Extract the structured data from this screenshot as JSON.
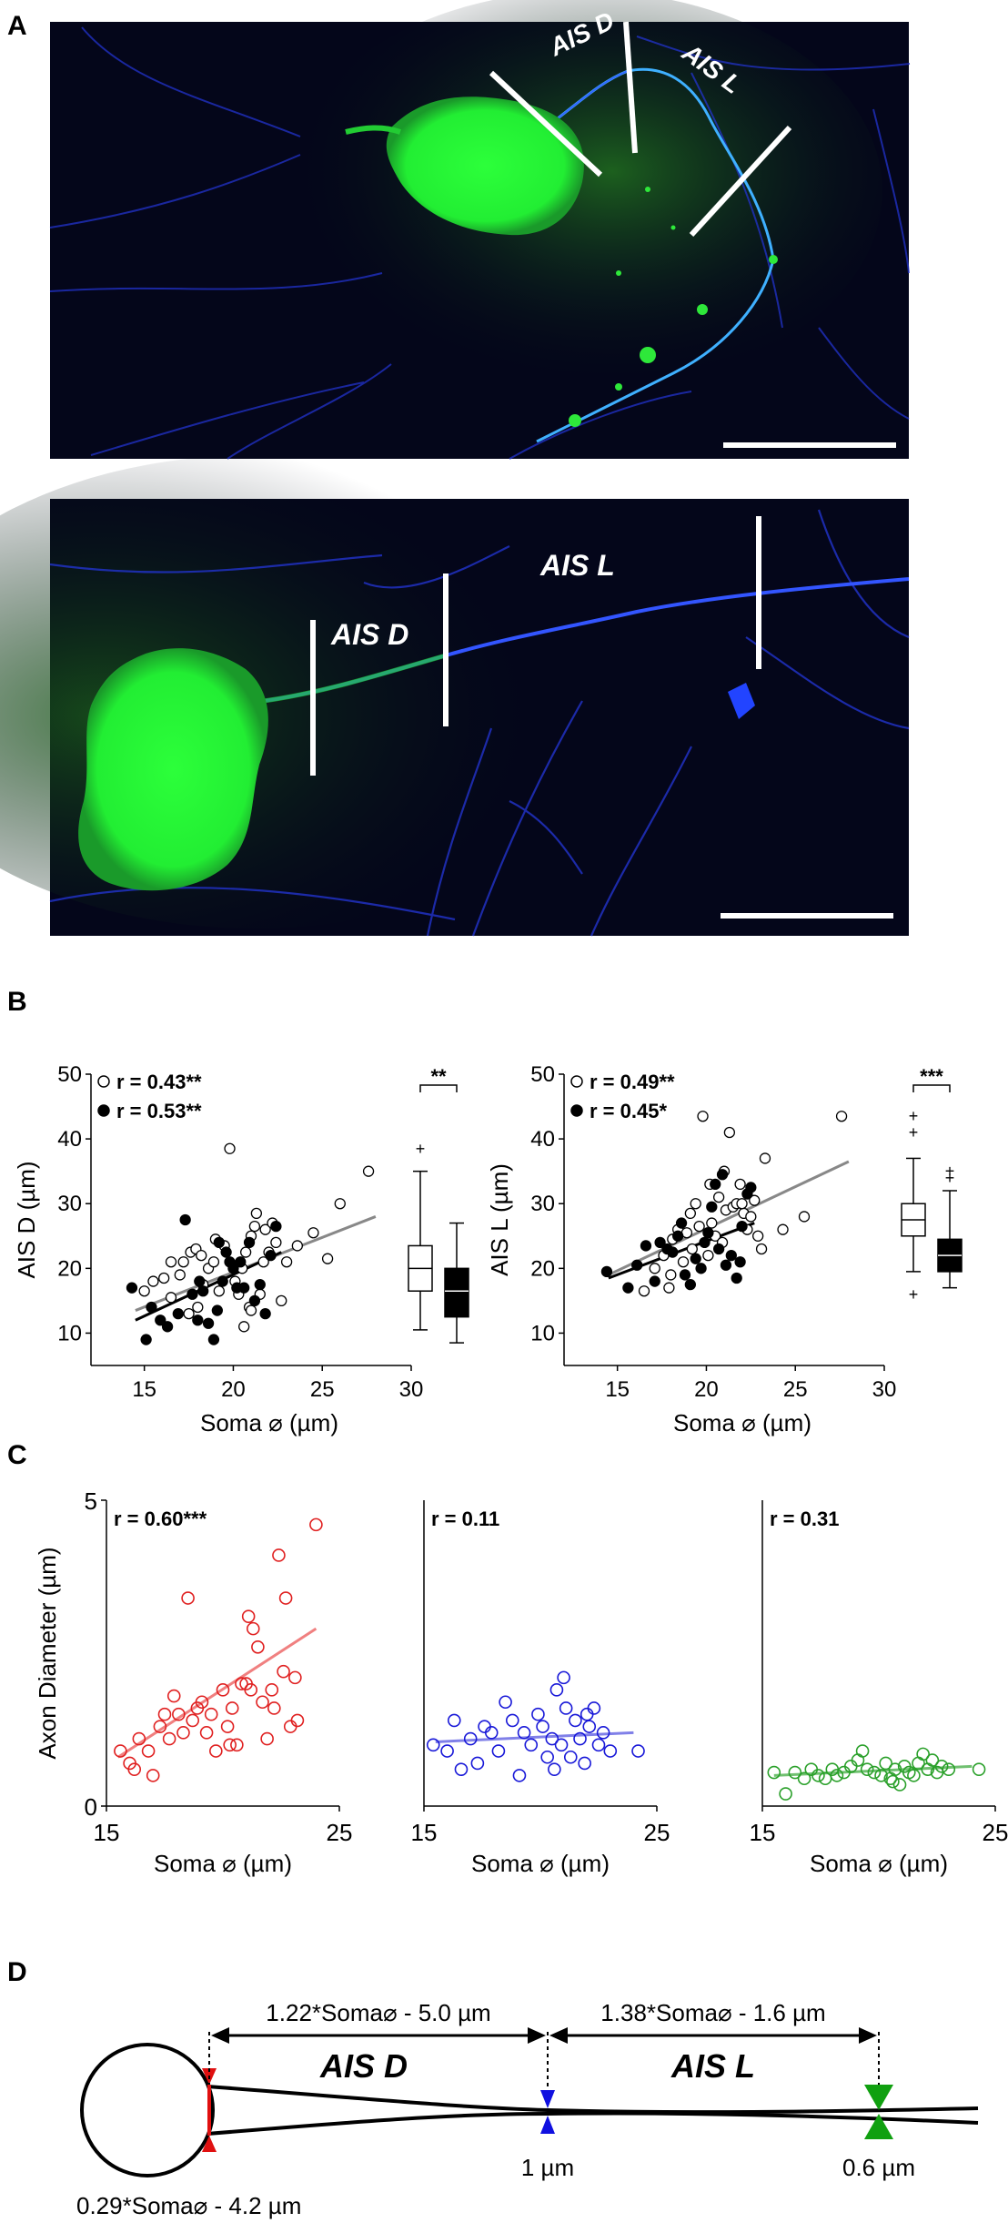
{
  "panel_labels": [
    "A",
    "B",
    "C",
    "D"
  ],
  "panel_a": {
    "top": {
      "label_d": "AIS D",
      "label_l": "AIS L"
    },
    "bottom": {
      "label_d": "AIS D",
      "label_l": "AIS L"
    },
    "colors": {
      "background": "#04061a",
      "soma": "#22ee33",
      "axon": "#2a3cff"
    }
  },
  "chart_data": [
    {
      "id": "B-left",
      "type": "scatter",
      "xlabel": "Soma ⌀ (µm)",
      "ylabel": "AIS D (µm)",
      "xlim": [
        12,
        30
      ],
      "ylim": [
        5,
        50
      ],
      "xticks": [
        15,
        20,
        25,
        30
      ],
      "yticks": [
        10,
        20,
        30,
        40,
        50
      ],
      "legend": [
        "r = 0.43**",
        "r = 0.53**"
      ],
      "significance": "**",
      "series": [
        {
          "name": "r = 0.43**",
          "fill": "open",
          "line_color": "#888888",
          "fit": [
            [
              14.5,
              13.5
            ],
            [
              28,
              28
            ]
          ],
          "points": [
            [
              15,
              16.5
            ],
            [
              15.5,
              18
            ],
            [
              16.1,
              18.5
            ],
            [
              16.5,
              15.5
            ],
            [
              17,
              19
            ],
            [
              17.2,
              21
            ],
            [
              17.6,
              22.5
            ],
            [
              17.9,
              23
            ],
            [
              18.2,
              22
            ],
            [
              18.3,
              17.5
            ],
            [
              18.6,
              20
            ],
            [
              18.9,
              21
            ],
            [
              19.2,
              16.5
            ],
            [
              19.5,
              23.5
            ],
            [
              19.8,
              38.5
            ],
            [
              20.1,
              18
            ],
            [
              20.3,
              16
            ],
            [
              20.5,
              20
            ],
            [
              20.7,
              22.5
            ],
            [
              20.9,
              14
            ],
            [
              21,
              25
            ],
            [
              21.2,
              26.5
            ],
            [
              21.3,
              28.5
            ],
            [
              21.5,
              16
            ],
            [
              21.7,
              21
            ],
            [
              21.8,
              26
            ],
            [
              22,
              22.5
            ],
            [
              22.2,
              27
            ],
            [
              22.4,
              24
            ],
            [
              22.7,
              15
            ],
            [
              23,
              21
            ],
            [
              23.6,
              23.5
            ],
            [
              24.5,
              25.5
            ],
            [
              25.3,
              21.5
            ],
            [
              26,
              30
            ],
            [
              27.6,
              35
            ],
            [
              18,
              14
            ],
            [
              19,
              24.5
            ],
            [
              20.6,
              11
            ],
            [
              21,
              13.5
            ],
            [
              16.5,
              21
            ],
            [
              17.5,
              13
            ]
          ]
        },
        {
          "name": "r = 0.53**",
          "fill": "filled",
          "line_color": "#000000",
          "fit": [
            [
              14.5,
              12
            ],
            [
              22.7,
              22.5
            ]
          ],
          "points": [
            [
              14.3,
              17
            ],
            [
              15.1,
              9
            ],
            [
              15.4,
              14
            ],
            [
              15.9,
              12
            ],
            [
              16.3,
              11
            ],
            [
              16.9,
              13
            ],
            [
              17.3,
              27.5
            ],
            [
              17.7,
              16
            ],
            [
              18,
              12
            ],
            [
              18.3,
              16.5
            ],
            [
              18.6,
              11.5
            ],
            [
              18.9,
              9
            ],
            [
              19.1,
              13.5
            ],
            [
              19.4,
              18
            ],
            [
              19.6,
              22.5
            ],
            [
              19.8,
              21
            ],
            [
              20,
              20
            ],
            [
              20.2,
              17
            ],
            [
              20.4,
              21
            ],
            [
              20.6,
              17
            ],
            [
              20.9,
              24
            ],
            [
              21.2,
              15
            ],
            [
              21.5,
              17.5
            ],
            [
              21.8,
              13
            ],
            [
              22.1,
              22
            ],
            [
              22.4,
              26.5
            ],
            [
              19.2,
              24
            ],
            [
              18.1,
              18
            ]
          ]
        }
      ],
      "boxes": [
        {
          "fill": "open",
          "whisker_low": 10.5,
          "q1": 16.5,
          "median": 20,
          "q3": 23.5,
          "whisker_high": 35,
          "outliers": [
            38.5
          ]
        },
        {
          "fill": "filled",
          "whisker_low": 8.5,
          "q1": 12.5,
          "median": 16.5,
          "q3": 20,
          "whisker_high": 27,
          "outliers": []
        }
      ]
    },
    {
      "id": "B-right",
      "type": "scatter",
      "xlabel": "Soma ⌀ (µm)",
      "ylabel": "AIS L (µm)",
      "xlim": [
        12,
        30
      ],
      "ylim": [
        5,
        50
      ],
      "xticks": [
        15,
        20,
        25,
        30
      ],
      "yticks": [
        10,
        20,
        30,
        40,
        50
      ],
      "legend": [
        "r = 0.49**",
        "r = 0.45*"
      ],
      "significance": "***",
      "series": [
        {
          "name": "r = 0.49**",
          "fill": "open",
          "line_color": "#888888",
          "fit": [
            [
              14.5,
              19
            ],
            [
              28,
              36.5
            ]
          ],
          "points": [
            [
              16.5,
              16.5
            ],
            [
              17.1,
              20
            ],
            [
              17.6,
              22
            ],
            [
              17.9,
              17
            ],
            [
              18.1,
              24.5
            ],
            [
              18.4,
              26
            ],
            [
              18.7,
              21
            ],
            [
              18.9,
              25.5
            ],
            [
              19.1,
              28.5
            ],
            [
              19.4,
              30
            ],
            [
              19.6,
              26.5
            ],
            [
              19.8,
              43.5
            ],
            [
              20.1,
              22
            ],
            [
              20.3,
              27
            ],
            [
              20.5,
              25
            ],
            [
              20.7,
              31
            ],
            [
              20.9,
              24
            ],
            [
              21.1,
              29
            ],
            [
              21.3,
              41
            ],
            [
              21.5,
              29.5
            ],
            [
              21.7,
              30
            ],
            [
              21.9,
              33
            ],
            [
              22.1,
              28.5
            ],
            [
              22.3,
              26
            ],
            [
              22.5,
              28
            ],
            [
              22.7,
              30.5
            ],
            [
              22.9,
              25
            ],
            [
              23.1,
              23
            ],
            [
              23.3,
              37
            ],
            [
              24.3,
              26
            ],
            [
              25.5,
              28
            ],
            [
              27.6,
              43.5
            ],
            [
              18,
              19
            ],
            [
              19.2,
              23
            ],
            [
              20.2,
              33
            ],
            [
              21,
              35
            ],
            [
              22,
              30
            ]
          ]
        },
        {
          "name": "r = 0.45*",
          "fill": "filled",
          "line_color": "#000000",
          "fit": [
            [
              14.5,
              18.5
            ],
            [
              22.7,
              27
            ]
          ],
          "points": [
            [
              14.4,
              19.5
            ],
            [
              15.6,
              17
            ],
            [
              16.1,
              20.5
            ],
            [
              16.6,
              23.5
            ],
            [
              17.1,
              18
            ],
            [
              17.4,
              24
            ],
            [
              17.8,
              23
            ],
            [
              18.1,
              22.5
            ],
            [
              18.4,
              25
            ],
            [
              18.6,
              27
            ],
            [
              18.8,
              19
            ],
            [
              19.1,
              17.5
            ],
            [
              19.4,
              21.5
            ],
            [
              19.7,
              20
            ],
            [
              19.9,
              24
            ],
            [
              20.1,
              25.5
            ],
            [
              20.3,
              29.5
            ],
            [
              20.5,
              33
            ],
            [
              20.7,
              23
            ],
            [
              20.9,
              34.5
            ],
            [
              21.1,
              20.5
            ],
            [
              21.4,
              22
            ],
            [
              21.7,
              18.5
            ],
            [
              22,
              26.5
            ],
            [
              22.3,
              31.5
            ],
            [
              22.5,
              32.5
            ],
            [
              21.9,
              21
            ]
          ]
        }
      ],
      "boxes": [
        {
          "fill": "open",
          "whisker_low": 19.5,
          "q1": 25,
          "median": 27.5,
          "q3": 30,
          "whisker_high": 37,
          "outliers": [
            16,
            43.5,
            41
          ]
        },
        {
          "fill": "filled",
          "whisker_low": 17,
          "q1": 19.5,
          "median": 22,
          "q3": 24.5,
          "whisker_high": 32,
          "outliers": [
            34,
            35
          ]
        }
      ]
    },
    {
      "id": "C-red",
      "type": "scatter",
      "xlabel": "Soma ⌀ (µm)",
      "ylabel": "Axon Diameter (µm)",
      "xlim": [
        15,
        25
      ],
      "ylim": [
        0,
        5
      ],
      "xticks": [
        15,
        25
      ],
      "yticks": [
        0,
        5
      ],
      "annotation": "r = 0.60***",
      "color": "#e02020",
      "fit_color": "#f08080",
      "fit": [
        [
          15.5,
          0.8
        ],
        [
          24,
          2.9
        ]
      ],
      "points": [
        [
          15.6,
          0.9
        ],
        [
          16,
          0.7
        ],
        [
          16.2,
          0.6
        ],
        [
          16.4,
          1.1
        ],
        [
          16.8,
          0.9
        ],
        [
          17,
          0.5
        ],
        [
          17.3,
          1.3
        ],
        [
          17.5,
          1.5
        ],
        [
          17.7,
          1.1
        ],
        [
          17.9,
          1.8
        ],
        [
          18.1,
          1.5
        ],
        [
          18.3,
          1.2
        ],
        [
          18.5,
          3.4
        ],
        [
          18.7,
          1.4
        ],
        [
          18.9,
          1.6
        ],
        [
          19.1,
          1.7
        ],
        [
          19.3,
          1.2
        ],
        [
          19.5,
          1.5
        ],
        [
          19.7,
          0.9
        ],
        [
          20,
          1.9
        ],
        [
          20.2,
          1.3
        ],
        [
          20.4,
          1.6
        ],
        [
          20.6,
          1
        ],
        [
          20.8,
          2
        ],
        [
          21,
          2
        ],
        [
          21.2,
          1.9
        ],
        [
          21.3,
          2.9
        ],
        [
          21.5,
          2.6
        ],
        [
          21.7,
          1.7
        ],
        [
          21.9,
          1.1
        ],
        [
          22.1,
          1.9
        ],
        [
          22.2,
          1.6
        ],
        [
          22.4,
          4.1
        ],
        [
          22.6,
          2.2
        ],
        [
          22.7,
          3.4
        ],
        [
          22.9,
          1.3
        ],
        [
          23.1,
          2.1
        ],
        [
          23.2,
          1.4
        ],
        [
          24,
          4.6
        ],
        [
          20.3,
          1.0
        ],
        [
          21.1,
          3.1
        ]
      ]
    },
    {
      "id": "C-blue",
      "type": "scatter",
      "xlabel": "Soma ⌀ (µm)",
      "ylabel": "",
      "xlim": [
        15,
        25
      ],
      "ylim": [
        0,
        5
      ],
      "xticks": [
        15,
        25
      ],
      "yticks": [],
      "annotation": "r = 0.11",
      "color": "#1818d8",
      "fit_color": "#8080e8",
      "fit": [
        [
          15.5,
          1.05
        ],
        [
          24,
          1.2
        ]
      ],
      "points": [
        [
          15.4,
          1.0
        ],
        [
          16,
          0.9
        ],
        [
          16.3,
          1.4
        ],
        [
          16.6,
          0.6
        ],
        [
          17,
          1.1
        ],
        [
          17.3,
          0.7
        ],
        [
          17.6,
          1.3
        ],
        [
          17.9,
          1.2
        ],
        [
          18.2,
          0.9
        ],
        [
          18.5,
          1.7
        ],
        [
          18.8,
          1.4
        ],
        [
          19.1,
          0.5
        ],
        [
          19.3,
          1.2
        ],
        [
          19.6,
          1.0
        ],
        [
          19.9,
          1.5
        ],
        [
          20.1,
          1.3
        ],
        [
          20.3,
          0.8
        ],
        [
          20.5,
          1.1
        ],
        [
          20.7,
          1.9
        ],
        [
          20.9,
          1.0
        ],
        [
          21.1,
          1.6
        ],
        [
          21.3,
          0.8
        ],
        [
          21.5,
          1.4
        ],
        [
          21.7,
          1.1
        ],
        [
          21.9,
          0.7
        ],
        [
          22.1,
          1.3
        ],
        [
          22.3,
          1.6
        ],
        [
          22.5,
          1.0
        ],
        [
          22.7,
          1.2
        ],
        [
          23,
          0.9
        ],
        [
          21,
          2.1
        ],
        [
          24.2,
          0.9
        ],
        [
          20.6,
          0.6
        ],
        [
          22,
          1.5
        ]
      ]
    },
    {
      "id": "C-green",
      "type": "scatter",
      "xlabel": "Soma ⌀ (µm)",
      "ylabel": "",
      "xlim": [
        15,
        25
      ],
      "ylim": [
        0,
        5
      ],
      "xticks": [
        15,
        25
      ],
      "yticks": [],
      "annotation": "r = 0.31",
      "color": "#2aa02a",
      "fit_color": "#70c070",
      "fit": [
        [
          15.5,
          0.5
        ],
        [
          24,
          0.65
        ]
      ],
      "points": [
        [
          15.5,
          0.55
        ],
        [
          16,
          0.2
        ],
        [
          16.4,
          0.55
        ],
        [
          16.8,
          0.45
        ],
        [
          17.1,
          0.6
        ],
        [
          17.4,
          0.5
        ],
        [
          17.7,
          0.45
        ],
        [
          18,
          0.6
        ],
        [
          18.2,
          0.5
        ],
        [
          18.5,
          0.55
        ],
        [
          18.8,
          0.65
        ],
        [
          19.1,
          0.75
        ],
        [
          19.3,
          0.9
        ],
        [
          19.5,
          0.6
        ],
        [
          19.8,
          0.55
        ],
        [
          20.1,
          0.5
        ],
        [
          20.3,
          0.7
        ],
        [
          20.5,
          0.45
        ],
        [
          20.7,
          0.6
        ],
        [
          20.9,
          0.35
        ],
        [
          21.1,
          0.65
        ],
        [
          21.3,
          0.55
        ],
        [
          21.5,
          0.5
        ],
        [
          21.7,
          0.7
        ],
        [
          21.9,
          0.85
        ],
        [
          22.1,
          0.6
        ],
        [
          22.3,
          0.75
        ],
        [
          22.5,
          0.55
        ],
        [
          22.7,
          0.65
        ],
        [
          23,
          0.6
        ],
        [
          24.3,
          0.6
        ],
        [
          20.6,
          0.4
        ]
      ]
    }
  ],
  "panel_d": {
    "formula_d": "1.22*Soma⌀ - 5.0 µm",
    "formula_l": "1.38*Soma⌀ - 1.6 µm",
    "label_d": "AIS D",
    "label_l": "AIS L",
    "diam_mid": "1 µm",
    "diam_end": "0.6 µm",
    "diam_start": "0.29*Soma⌀ - 4.2 µm",
    "colors": {
      "start": "#e01010",
      "mid": "#1010e0",
      "end": "#10a010"
    }
  }
}
